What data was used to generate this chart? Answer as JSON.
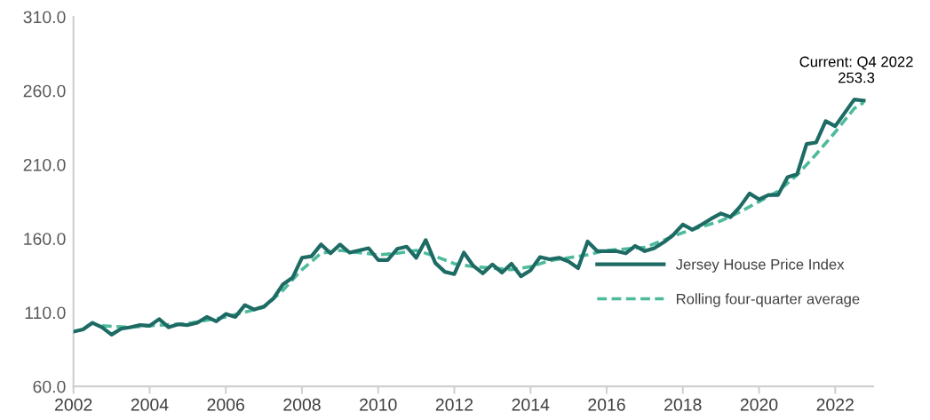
{
  "chart_data": {
    "type": "line",
    "xlim": [
      2002,
      2023
    ],
    "xticks": [
      2002,
      2004,
      2006,
      2008,
      2010,
      2012,
      2014,
      2016,
      2018,
      2020,
      2022
    ],
    "ylim": [
      60,
      310
    ],
    "yticks": [
      {
        "value": 60,
        "label": "60.0"
      },
      {
        "value": 110,
        "label": "110.0"
      },
      {
        "value": 160,
        "label": "160.0"
      },
      {
        "value": 210,
        "label": "210.0"
      },
      {
        "value": 260,
        "label": "260.0"
      },
      {
        "value": 310,
        "label": "310.0"
      }
    ],
    "grid": false,
    "legend": "right",
    "series": [
      {
        "name": "Jersey House Price Index",
        "color": "#1d6b64",
        "line_style": "solid",
        "x": [
          2002.0,
          2002.25,
          2002.5,
          2002.75,
          2003.0,
          2003.25,
          2003.5,
          2003.75,
          2004.0,
          2004.25,
          2004.5,
          2004.75,
          2005.0,
          2005.25,
          2005.5,
          2005.75,
          2006.0,
          2006.25,
          2006.5,
          2006.75,
          2007.0,
          2007.25,
          2007.5,
          2007.75,
          2008.0,
          2008.25,
          2008.5,
          2008.75,
          2009.0,
          2009.25,
          2009.5,
          2009.75,
          2010.0,
          2010.25,
          2010.5,
          2010.75,
          2011.0,
          2011.25,
          2011.5,
          2011.75,
          2012.0,
          2012.25,
          2012.5,
          2012.75,
          2013.0,
          2013.25,
          2013.5,
          2013.75,
          2014.0,
          2014.25,
          2014.5,
          2014.75,
          2015.0,
          2015.25,
          2015.5,
          2015.75,
          2016.0,
          2016.25,
          2016.5,
          2016.75,
          2017.0,
          2017.25,
          2017.5,
          2017.75,
          2018.0,
          2018.25,
          2018.5,
          2018.75,
          2019.0,
          2019.25,
          2019.5,
          2019.75,
          2020.0,
          2020.25,
          2020.5,
          2020.75,
          2021.0,
          2021.25,
          2021.5,
          2021.75,
          2022.0,
          2022.25,
          2022.5,
          2022.75
        ],
        "values": [
          97,
          98.5,
          103,
          100,
          95,
          99,
          100,
          101.5,
          101,
          105.5,
          100,
          102,
          101.5,
          103,
          107,
          104,
          109,
          107,
          115,
          112,
          114,
          119.5,
          129,
          133.5,
          147,
          148,
          156,
          150,
          156,
          150.5,
          152,
          153.5,
          145.5,
          145.5,
          153,
          154.5,
          147,
          159,
          143.5,
          137.5,
          136,
          150.5,
          141.5,
          136.5,
          142.5,
          137,
          143,
          134.5,
          138.5,
          147.5,
          146,
          147,
          144.5,
          140,
          158,
          151.5,
          151.5,
          151.5,
          150,
          155,
          151.5,
          153.5,
          157.5,
          162.5,
          169.5,
          166,
          169.5,
          173.5,
          177,
          174.5,
          181.5,
          190.5,
          186.5,
          189.5,
          189.5,
          201.5,
          203.5,
          224,
          225,
          239.5,
          236,
          245,
          254,
          253.3
        ]
      },
      {
        "name": "Rolling four-quarter average",
        "color": "#4dbb9b",
        "line_style": "dashed",
        "x": [
          2002.75,
          2003.5,
          2004.0,
          2005.0,
          2006.0,
          2007.0,
          2007.5,
          2008.0,
          2008.5,
          2009.0,
          2010.0,
          2010.5,
          2011.0,
          2011.5,
          2012.0,
          2012.5,
          2013.0,
          2013.5,
          2014.0,
          2014.5,
          2015.0,
          2015.5,
          2016.0,
          2016.5,
          2017.0,
          2017.5,
          2018.0,
          2018.5,
          2019.0,
          2019.5,
          2020.0,
          2020.5,
          2021.0,
          2021.5,
          2022.0,
          2022.5,
          2022.75
        ],
        "values": [
          101,
          100,
          101,
          102.5,
          107,
          113.5,
          125,
          139,
          150,
          152,
          149,
          150,
          152,
          148,
          143,
          141,
          140,
          139,
          141,
          145,
          147,
          149,
          152,
          153,
          154,
          159,
          164,
          168,
          172,
          178,
          185,
          192,
          203,
          217,
          232,
          248,
          252
        ]
      }
    ],
    "annotations": [
      {
        "text": "Current: Q4 2022\n253.3",
        "x": 2022.75,
        "y": 253.3
      }
    ]
  }
}
